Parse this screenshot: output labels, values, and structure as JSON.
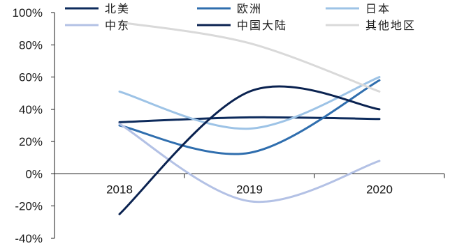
{
  "chart_data": {
    "type": "line",
    "smooth": true,
    "title": "",
    "xlabel": "",
    "ylabel": "",
    "categories": [
      "2018",
      "2019",
      "2020"
    ],
    "series": [
      {
        "name": "北美",
        "values": [
          32,
          35,
          34
        ],
        "color": "#0d2b5c"
      },
      {
        "name": "欧洲",
        "values": [
          30,
          13,
          58
        ],
        "color": "#2f6eae"
      },
      {
        "name": "日本",
        "values": [
          51,
          28,
          60
        ],
        "color": "#9dc3e6"
      },
      {
        "name": "中东",
        "values": [
          31,
          -17,
          8
        ],
        "color": "#b3c1e5"
      },
      {
        "name": "中国大陆",
        "values": [
          -25,
          51,
          40
        ],
        "color": "#0a2250"
      },
      {
        "name": "其他地区",
        "values": [
          94,
          81,
          51
        ],
        "color": "#d9d9d9"
      }
    ],
    "ylim": [
      -40,
      100
    ],
    "yticks": [
      {
        "value": 100,
        "label": "100%"
      },
      {
        "value": 80,
        "label": "80%"
      },
      {
        "value": 60,
        "label": "60%"
      },
      {
        "value": 40,
        "label": "40%"
      },
      {
        "value": 20,
        "label": "20%"
      },
      {
        "value": 0,
        "label": "0%"
      },
      {
        "value": -20,
        "label": "-20%"
      },
      {
        "value": -40,
        "label": "-40%"
      }
    ],
    "grid": false,
    "legend": "top"
  }
}
